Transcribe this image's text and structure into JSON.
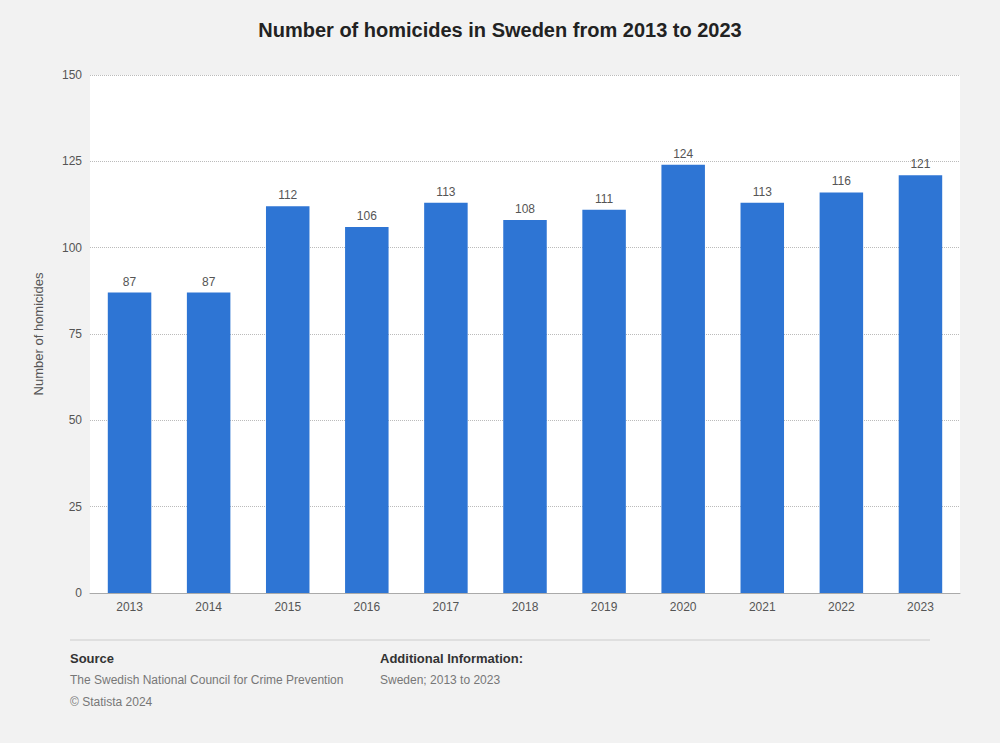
{
  "chart_data": {
    "type": "bar",
    "title": "Number of homicides in Sweden from 2013 to 2023",
    "categories": [
      "2013",
      "2014",
      "2015",
      "2016",
      "2017",
      "2018",
      "2019",
      "2020",
      "2021",
      "2022",
      "2023"
    ],
    "values": [
      87,
      87,
      112,
      106,
      113,
      108,
      111,
      124,
      113,
      116,
      121
    ],
    "color": "#2e75d4",
    "ylabel": "Number of homicides",
    "ylim": [
      0,
      150
    ],
    "yticks": [
      0,
      25,
      50,
      75,
      100,
      125,
      150
    ],
    "grid": true,
    "data_labels": true,
    "annotations": [
      [
        "Source",
        "The Swedish National Council for Crime Prevention",
        "© Statista 2024"
      ],
      [
        "Additional Information:",
        "Sweden; 2013 to 2023"
      ]
    ]
  }
}
